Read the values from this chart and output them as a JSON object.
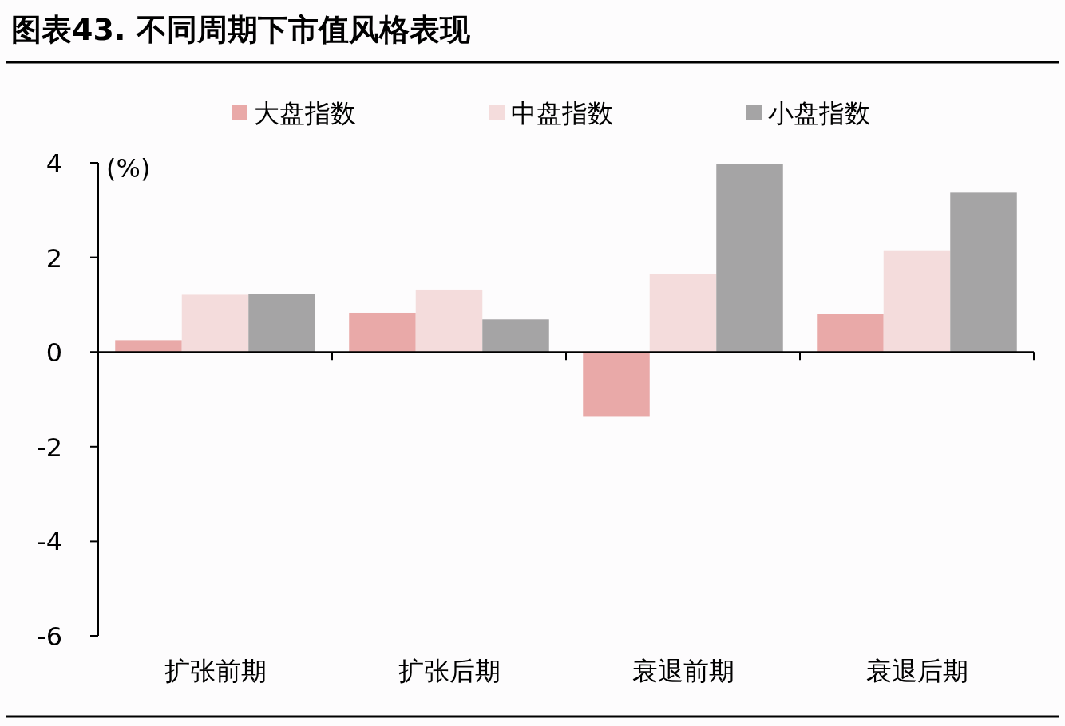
{
  "chart_data": {
    "type": "bar",
    "title": "图表43. 不同周期下市值风格表现",
    "ylabel": "(%)",
    "categories": [
      "扩张前期",
      "扩张后期",
      "衰退前期",
      "衰退后期"
    ],
    "series": [
      {
        "name": "大盘指数",
        "color": "#e9a9a8",
        "values": [
          0.25,
          0.83,
          -1.37,
          0.8
        ]
      },
      {
        "name": "中盘指数",
        "color": "#f4dcdc",
        "values": [
          1.21,
          1.32,
          1.64,
          2.15
        ]
      },
      {
        "name": "小盘指数",
        "color": "#a5a4a5",
        "values": [
          1.23,
          0.69,
          3.98,
          3.37
        ]
      }
    ],
    "ylim": [
      -6,
      4
    ],
    "yticks": [
      -6,
      -4,
      -2,
      0,
      2,
      4
    ],
    "legend": "top"
  }
}
